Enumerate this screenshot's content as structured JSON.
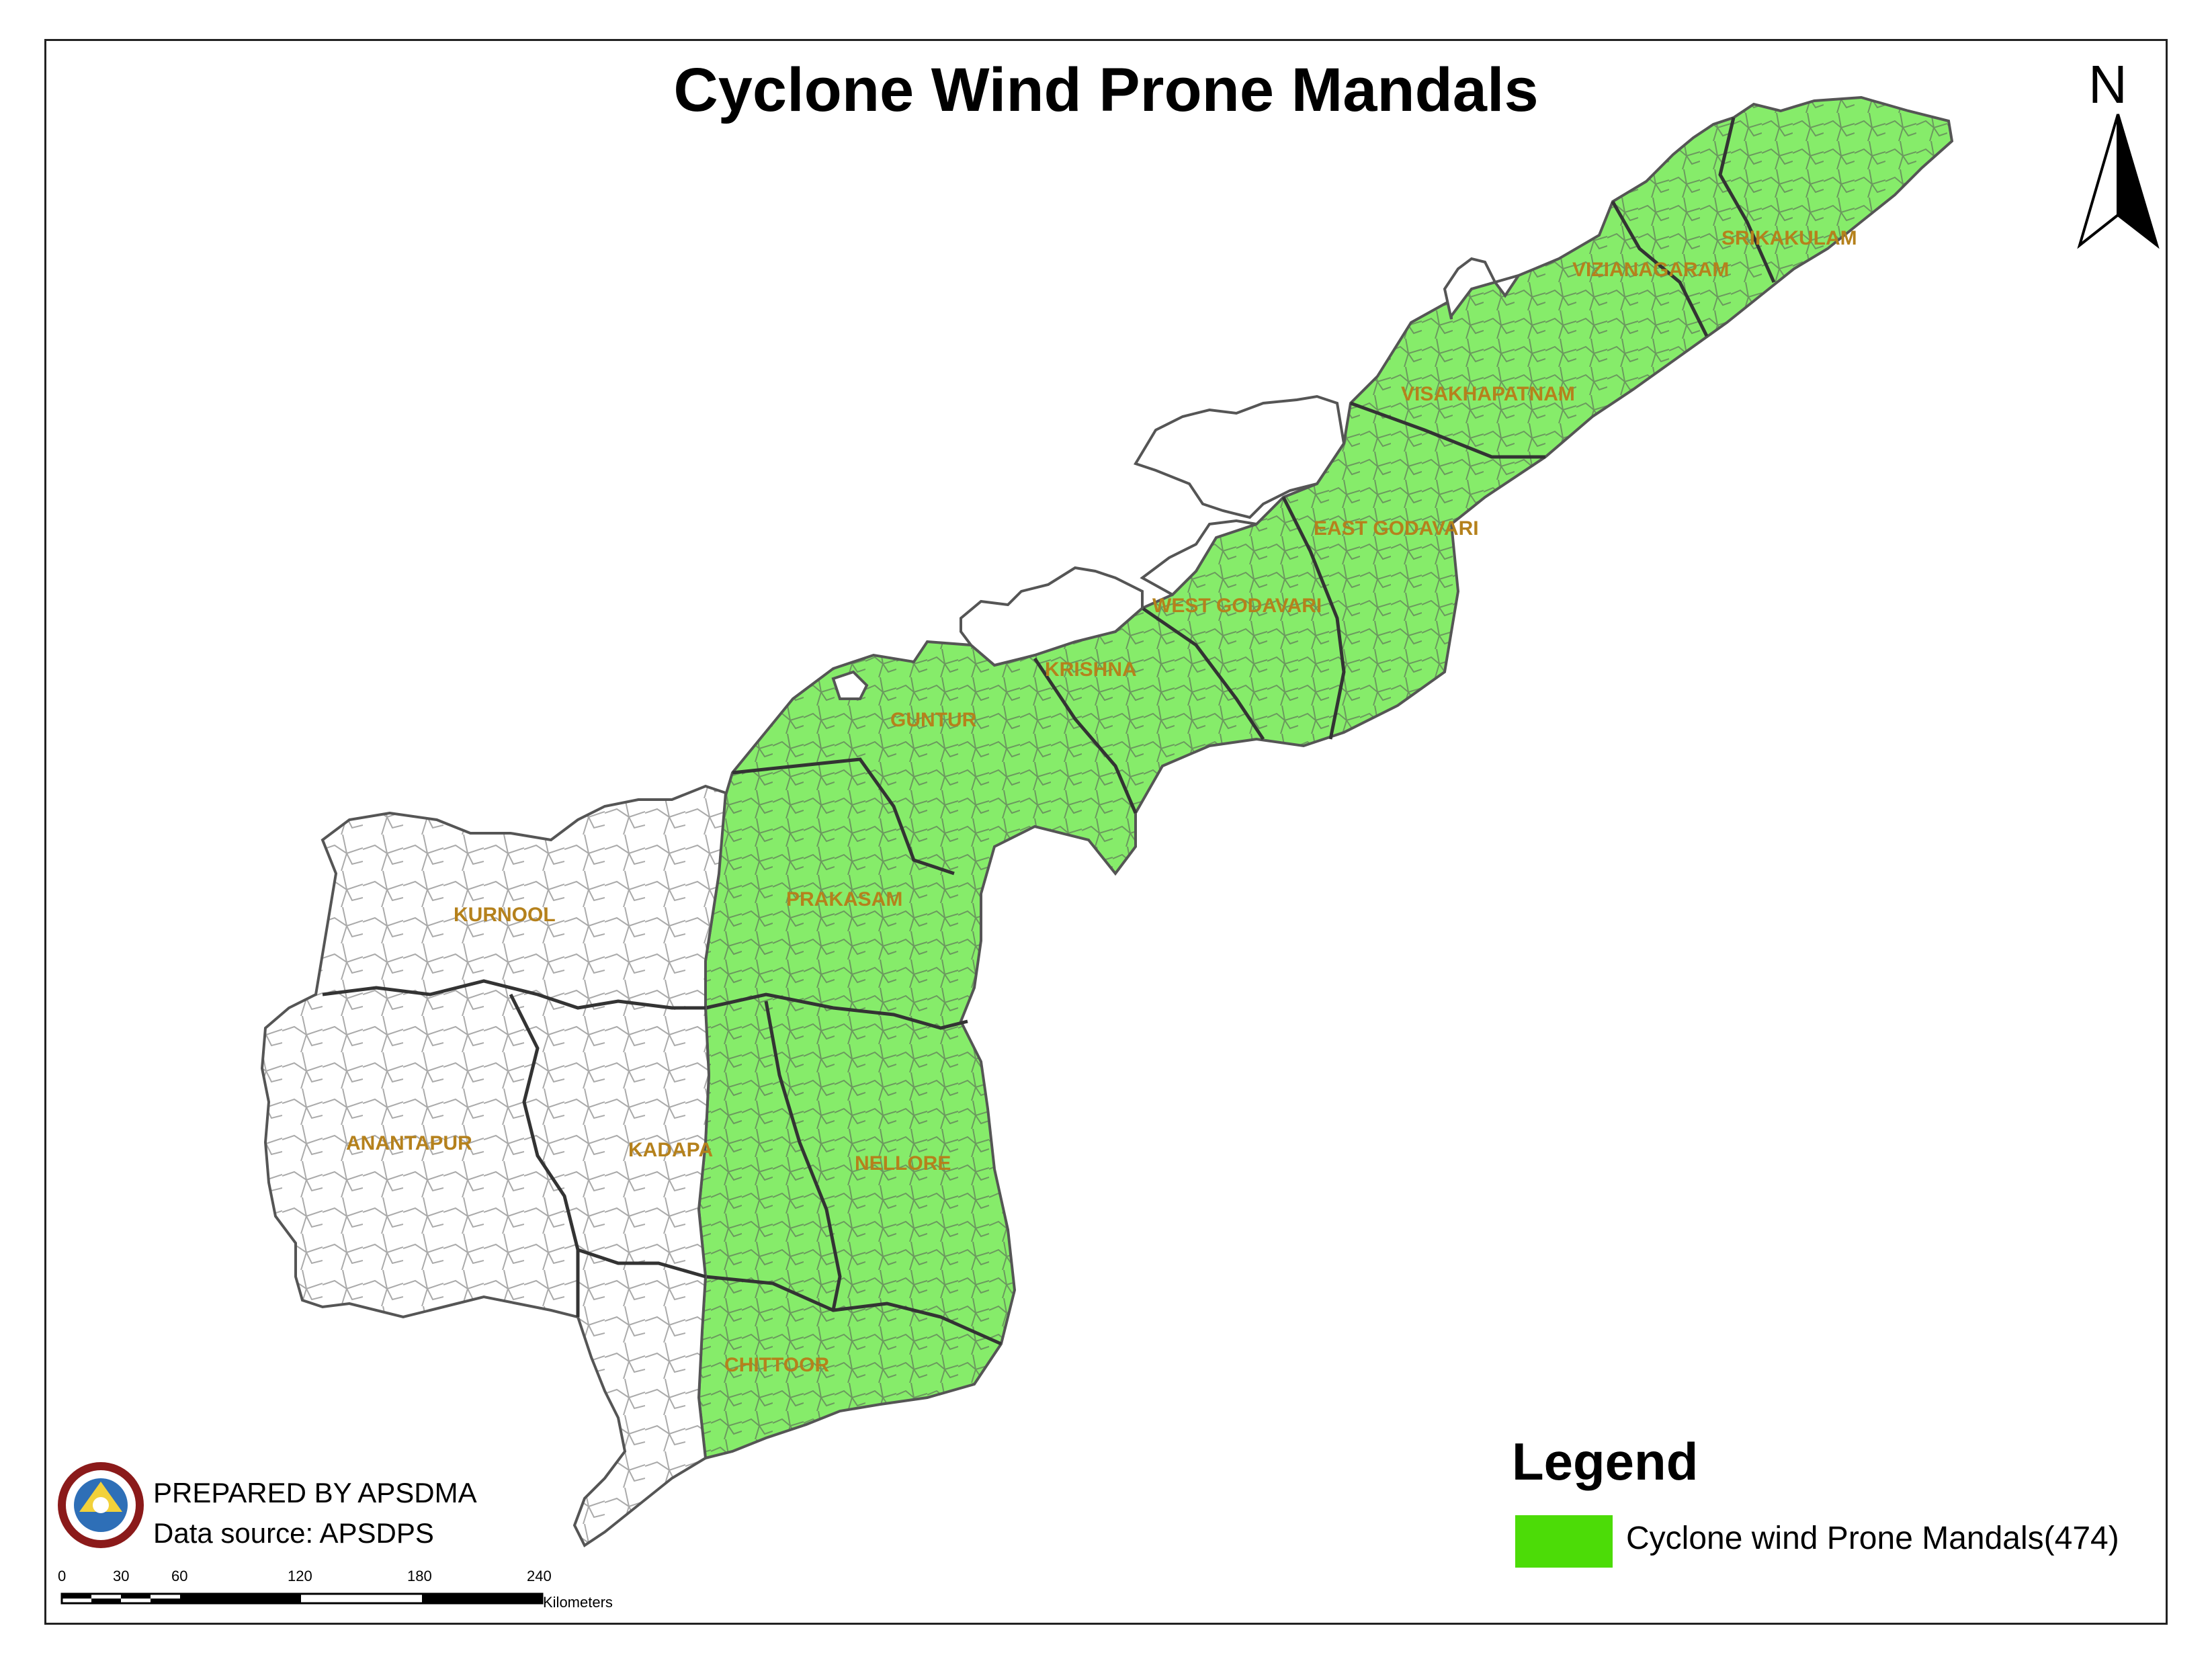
{
  "map": {
    "title": "Cyclone Wind Prone Mandals",
    "north_label": "N",
    "legend": {
      "title": "Legend",
      "items": [
        {
          "label": "Cyclone wind Prone Mandals(474)",
          "color": "#4cdc07"
        }
      ]
    },
    "credits": {
      "prepared_by": "PREPARED BY APSDMA",
      "data_source": "Data source: APSDPS"
    },
    "districts": [
      {
        "name": "SRIKAKULAM",
        "prone": true
      },
      {
        "name": "VIZIANAGARAM",
        "prone": true
      },
      {
        "name": "VISAKHAPATNAM",
        "prone": true
      },
      {
        "name": "EAST GODAVARI",
        "prone": true
      },
      {
        "name": "WEST GODAVARI",
        "prone": true
      },
      {
        "name": "KRISHNA",
        "prone": true
      },
      {
        "name": "GUNTUR",
        "prone": true
      },
      {
        "name": "PRAKASAM",
        "prone": true
      },
      {
        "name": "KURNOOL",
        "prone": false
      },
      {
        "name": "ANANTAPUR",
        "prone": false
      },
      {
        "name": "KADAPA",
        "prone": false
      },
      {
        "name": "NELLORE",
        "prone": true
      },
      {
        "name": "CHITTOOR",
        "prone": true
      }
    ],
    "scale": {
      "ticks": [
        "0",
        "30",
        "60",
        "120",
        "180",
        "240"
      ],
      "unit": "Kilometers"
    },
    "colors": {
      "prone_fill": "#86ec6a",
      "non_prone_fill": "#ffffff",
      "boundary": "#555555",
      "district_label": "#b5811c"
    }
  }
}
